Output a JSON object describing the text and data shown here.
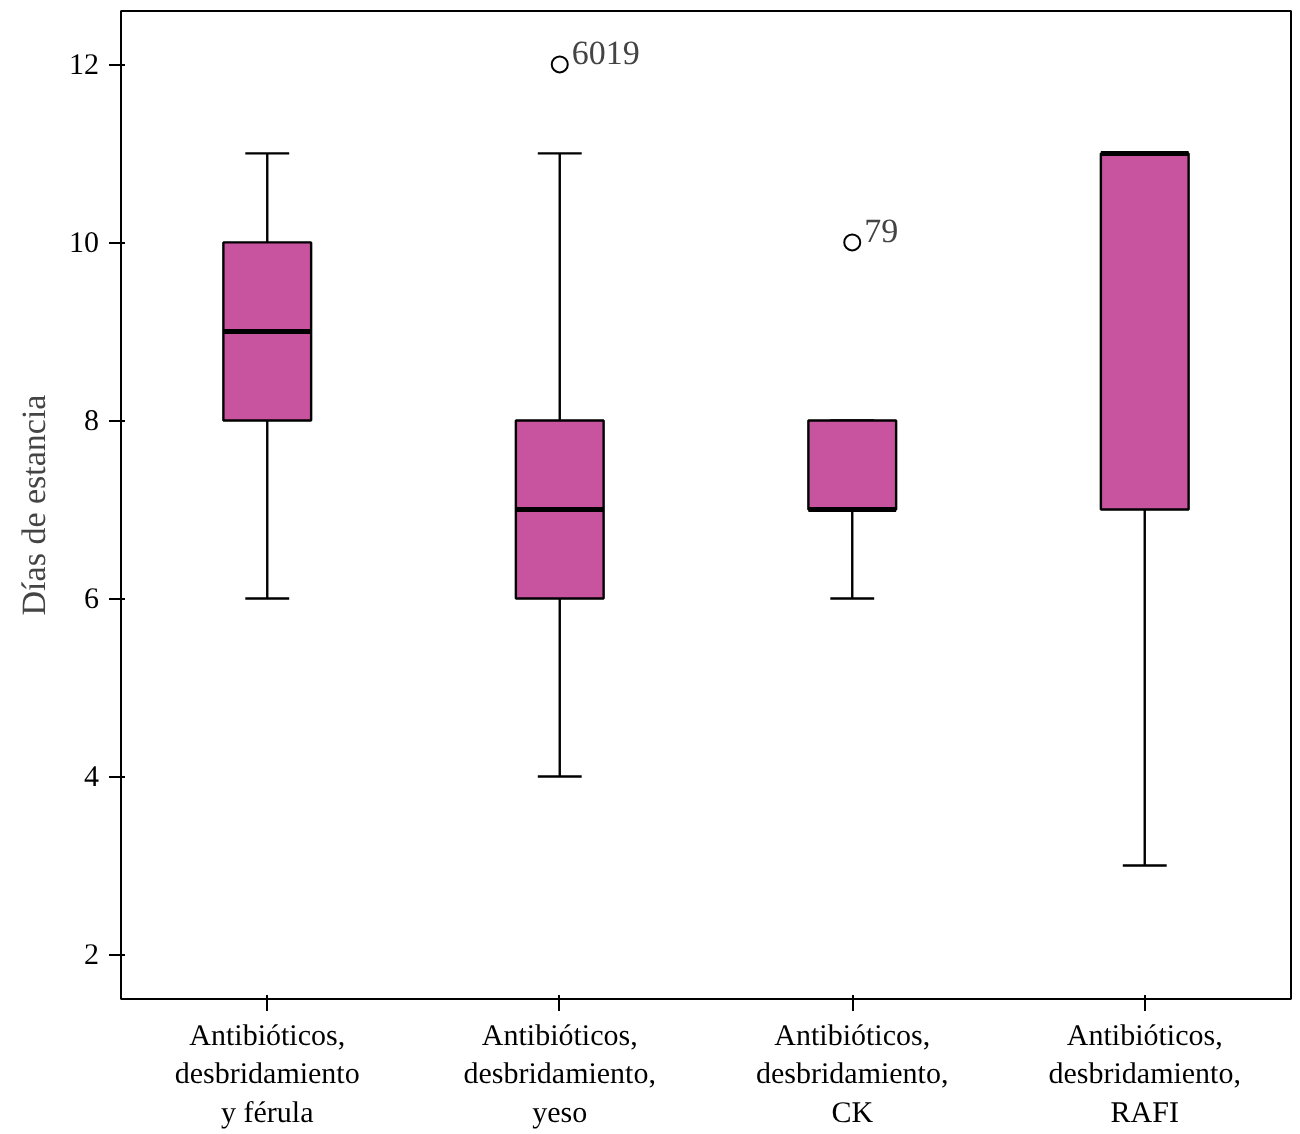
{
  "chart_data": {
    "type": "box",
    "ylabel": "Días de estancia",
    "categories": [
      "Antibióticos,\ndesbridamiento\ny férula",
      "Antibióticos,\ndesbridamiento,\nyeso",
      "Antibióticos,\ndesbridamiento,\nCK",
      "Antibióticos,\ndesbridamiento,\nRAFI"
    ],
    "boxes": [
      {
        "low": 6,
        "q1": 8,
        "median": 9,
        "q3": 10,
        "high": 11
      },
      {
        "low": 4,
        "q1": 6,
        "median": 7,
        "q3": 8,
        "high": 11,
        "outliers": [
          12
        ]
      },
      {
        "low": 6,
        "q1": 7,
        "median": 7,
        "q3": 8,
        "high": 8,
        "outliers": [
          10
        ]
      },
      {
        "low": 3,
        "q1": 7,
        "median": 11,
        "q3": 11,
        "high": 11
      }
    ],
    "color": "#c8549f",
    "ylim": [
      1.5,
      12.6
    ],
    "yticks": [
      2,
      4,
      6,
      8,
      10,
      12
    ],
    "grid": false,
    "annotations": [
      "6019",
      "79"
    ]
  }
}
